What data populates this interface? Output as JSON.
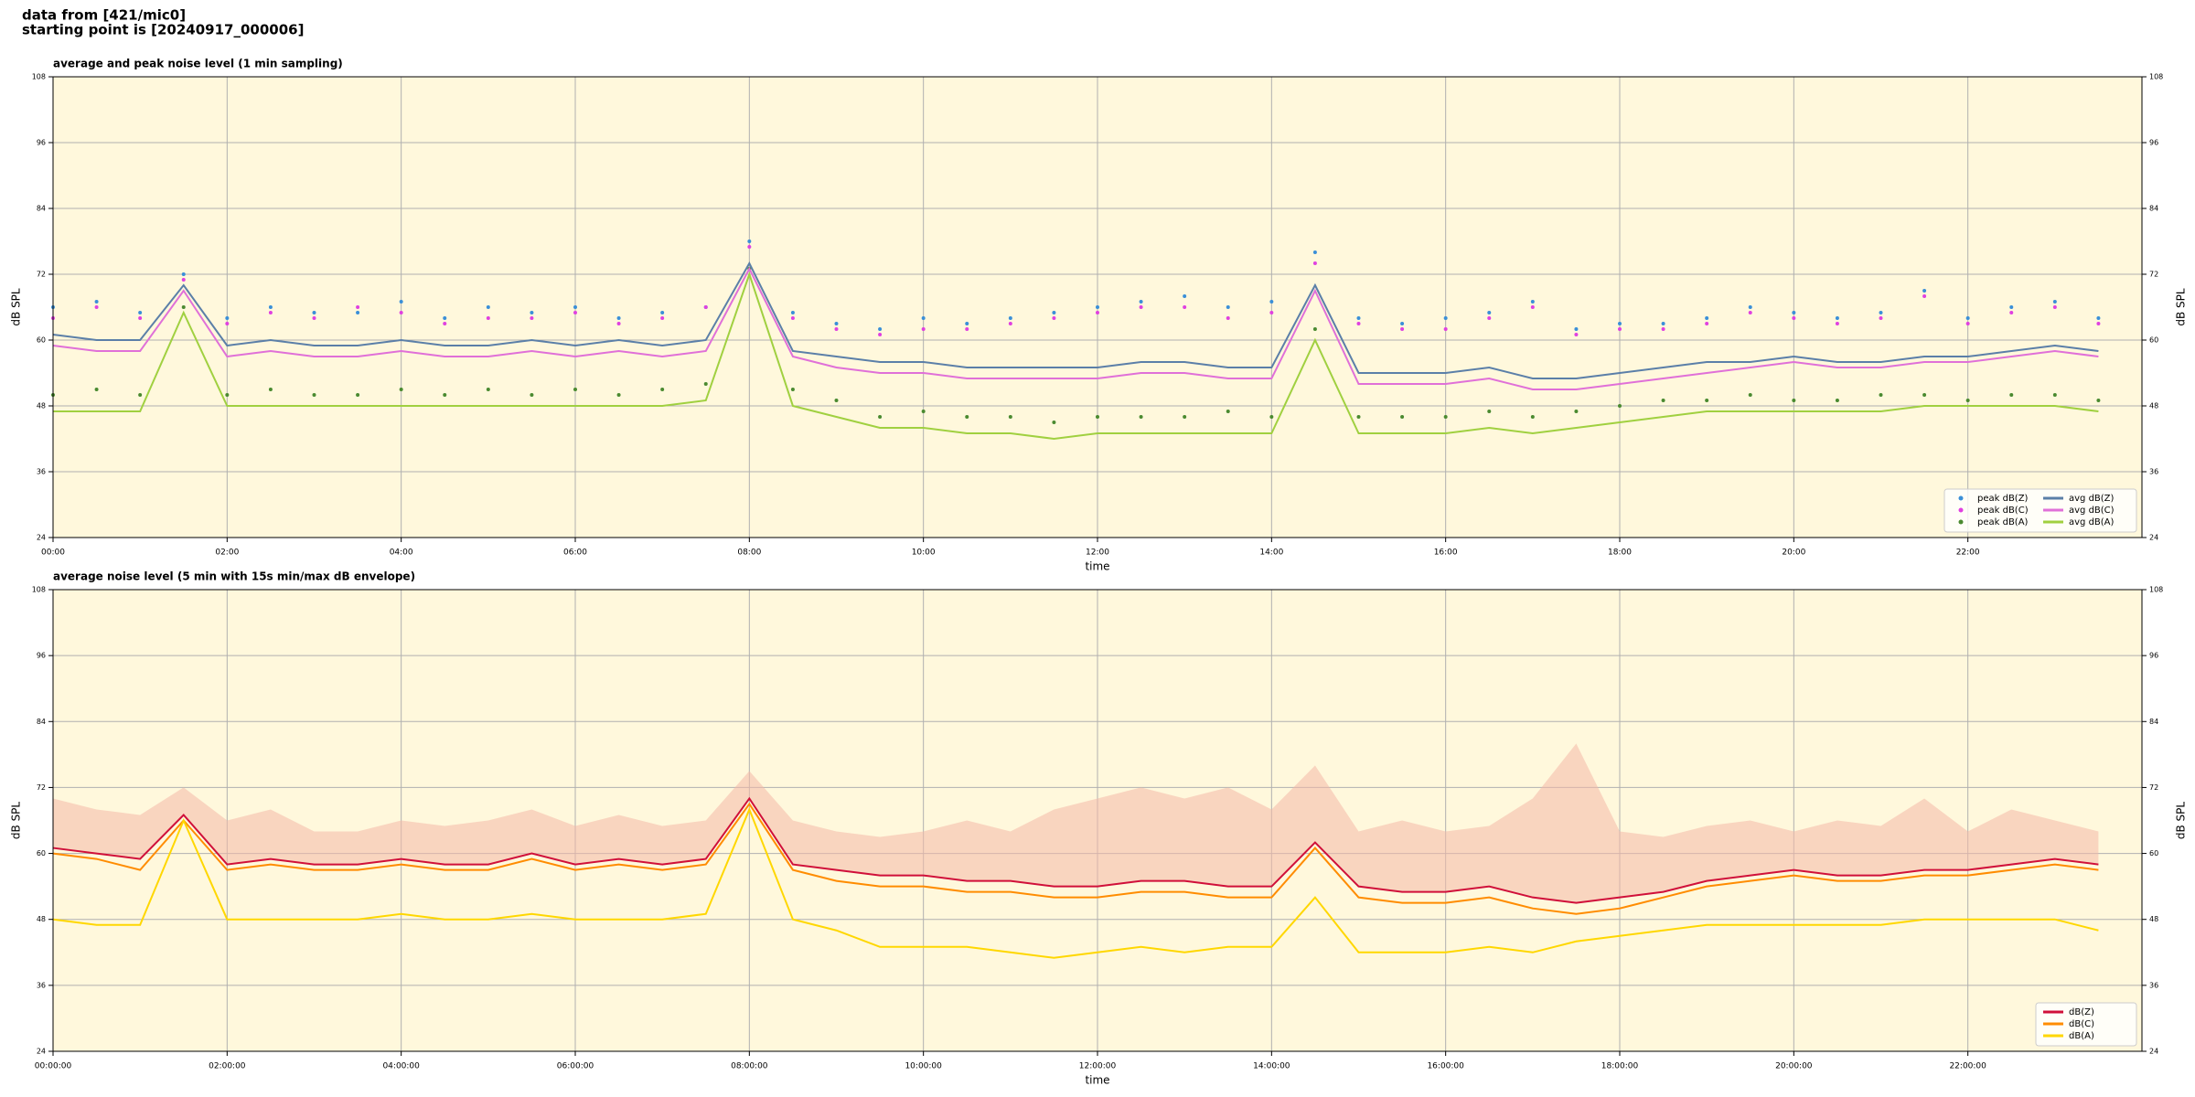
{
  "header": {
    "line1": "data from [421/mic0]",
    "line2": "starting point is [20240917_000006]"
  },
  "chart_data": [
    {
      "type": "line",
      "title": "average and peak noise level (1 min sampling)",
      "xlabel": "time",
      "ylabel": "dB SPL",
      "xlim": [
        0,
        24
      ],
      "ylim": [
        24,
        108
      ],
      "yticks": [
        24,
        36,
        48,
        60,
        72,
        84,
        96,
        108
      ],
      "xticks": [
        {
          "value": 0,
          "label": "00:00"
        },
        {
          "value": 2,
          "label": "02:00"
        },
        {
          "value": 4,
          "label": "04:00"
        },
        {
          "value": 6,
          "label": "06:00"
        },
        {
          "value": 8,
          "label": "08:00"
        },
        {
          "value": 10,
          "label": "10:00"
        },
        {
          "value": 12,
          "label": "12:00"
        },
        {
          "value": 14,
          "label": "14:00"
        },
        {
          "value": 16,
          "label": "16:00"
        },
        {
          "value": 18,
          "label": "18:00"
        },
        {
          "value": 20,
          "label": "20:00"
        },
        {
          "value": 22,
          "label": "22:00"
        }
      ],
      "grid": true,
      "legend": "lower right",
      "legend_columns": 2,
      "background": "#fff8dc",
      "x": [
        0,
        0.5,
        1,
        1.5,
        2,
        2.5,
        3,
        3.5,
        4,
        4.5,
        5,
        5.5,
        6,
        6.5,
        7,
        7.5,
        8,
        8.5,
        9,
        9.5,
        10,
        10.5,
        11,
        11.5,
        12,
        12.5,
        13,
        13.5,
        14,
        14.5,
        15,
        15.5,
        16,
        16.5,
        17,
        17.5,
        18,
        18.5,
        19,
        19.5,
        20,
        20.5,
        21,
        21.5,
        22,
        22.5,
        23,
        23.5
      ],
      "series": [
        {
          "name": "peak dB(Z)",
          "color": "#3a8fd8",
          "style": "dots",
          "values": [
            66,
            67,
            65,
            72,
            64,
            66,
            65,
            65,
            67,
            64,
            66,
            65,
            66,
            64,
            65,
            66,
            78,
            65,
            63,
            62,
            64,
            63,
            64,
            65,
            66,
            67,
            68,
            66,
            67,
            76,
            64,
            63,
            64,
            65,
            67,
            62,
            63,
            63,
            64,
            66,
            65,
            64,
            65,
            69,
            64,
            66,
            67,
            64
          ]
        },
        {
          "name": "peak dB(C)",
          "color": "#e040e0",
          "style": "dots",
          "values": [
            64,
            66,
            64,
            71,
            63,
            65,
            64,
            66,
            65,
            63,
            64,
            64,
            65,
            63,
            64,
            66,
            77,
            64,
            62,
            61,
            62,
            62,
            63,
            64,
            65,
            66,
            66,
            64,
            65,
            74,
            63,
            62,
            62,
            64,
            66,
            61,
            62,
            62,
            63,
            65,
            64,
            63,
            64,
            68,
            63,
            65,
            66,
            63
          ]
        },
        {
          "name": "peak dB(A)",
          "color": "#4a8a30",
          "style": "dots",
          "values": [
            50,
            51,
            50,
            66,
            50,
            51,
            50,
            50,
            51,
            50,
            51,
            50,
            51,
            50,
            51,
            52,
            73,
            51,
            49,
            46,
            47,
            46,
            46,
            45,
            46,
            46,
            46,
            47,
            46,
            62,
            46,
            46,
            46,
            47,
            46,
            47,
            48,
            49,
            49,
            50,
            49,
            49,
            50,
            50,
            49,
            50,
            50,
            49
          ]
        },
        {
          "name": "avg dB(Z)",
          "color": "#5b7fa8",
          "style": "line",
          "values": [
            61,
            60,
            60,
            70,
            59,
            60,
            59,
            59,
            60,
            59,
            59,
            60,
            59,
            60,
            59,
            60,
            74,
            58,
            57,
            56,
            56,
            55,
            55,
            55,
            55,
            56,
            56,
            55,
            55,
            70,
            54,
            54,
            54,
            55,
            53,
            53,
            54,
            55,
            56,
            56,
            57,
            56,
            56,
            57,
            57,
            58,
            59,
            58
          ]
        },
        {
          "name": "avg dB(C)",
          "color": "#e070d8",
          "style": "line",
          "values": [
            59,
            58,
            58,
            69,
            57,
            58,
            57,
            57,
            58,
            57,
            57,
            58,
            57,
            58,
            57,
            58,
            73,
            57,
            55,
            54,
            54,
            53,
            53,
            53,
            53,
            54,
            54,
            53,
            53,
            69,
            52,
            52,
            52,
            53,
            51,
            51,
            52,
            53,
            54,
            55,
            56,
            55,
            55,
            56,
            56,
            57,
            58,
            57
          ]
        },
        {
          "name": "avg dB(A)",
          "color": "#a0d040",
          "style": "line",
          "values": [
            47,
            47,
            47,
            65,
            48,
            48,
            48,
            48,
            48,
            48,
            48,
            48,
            48,
            48,
            48,
            49,
            72,
            48,
            46,
            44,
            44,
            43,
            43,
            42,
            43,
            43,
            43,
            43,
            43,
            60,
            43,
            43,
            43,
            44,
            43,
            44,
            45,
            46,
            47,
            47,
            47,
            47,
            47,
            48,
            48,
            48,
            48,
            47
          ]
        }
      ]
    },
    {
      "type": "line",
      "title": "average noise level (5 min with 15s min/max dB envelope)",
      "xlabel": "time",
      "ylabel": "dB SPL",
      "xlim": [
        0,
        24
      ],
      "ylim": [
        24,
        108
      ],
      "yticks": [
        24,
        36,
        48,
        60,
        72,
        84,
        96,
        108
      ],
      "xticks": [
        {
          "value": 0,
          "label": "00:00:00"
        },
        {
          "value": 2,
          "label": "02:00:00"
        },
        {
          "value": 4,
          "label": "04:00:00"
        },
        {
          "value": 6,
          "label": "06:00:00"
        },
        {
          "value": 8,
          "label": "08:00:00"
        },
        {
          "value": 10,
          "label": "10:00:00"
        },
        {
          "value": 12,
          "label": "12:00:00"
        },
        {
          "value": 14,
          "label": "14:00:00"
        },
        {
          "value": 16,
          "label": "16:00:00"
        },
        {
          "value": 18,
          "label": "18:00:00"
        },
        {
          "value": 20,
          "label": "20:00:00"
        },
        {
          "value": 22,
          "label": "22:00:00"
        }
      ],
      "grid": true,
      "legend": "lower right",
      "legend_columns": 1,
      "background": "#fff8dc",
      "x": [
        0,
        0.5,
        1,
        1.5,
        2,
        2.5,
        3,
        3.5,
        4,
        4.5,
        5,
        5.5,
        6,
        6.5,
        7,
        7.5,
        8,
        8.5,
        9,
        9.5,
        10,
        10.5,
        11,
        11.5,
        12,
        12.5,
        13,
        13.5,
        14,
        14.5,
        15,
        15.5,
        16,
        16.5,
        17,
        17.5,
        18,
        18.5,
        19,
        19.5,
        20,
        20.5,
        21,
        21.5,
        22,
        22.5,
        23,
        23.5
      ],
      "envelope": {
        "color": "#f4b8a8",
        "values": [
          70,
          68,
          67,
          72,
          66,
          68,
          64,
          64,
          66,
          65,
          66,
          68,
          65,
          67,
          65,
          66,
          75,
          66,
          64,
          63,
          64,
          66,
          64,
          68,
          70,
          72,
          70,
          72,
          68,
          76,
          64,
          66,
          64,
          65,
          70,
          80,
          64,
          63,
          65,
          66,
          64,
          66,
          65,
          70,
          64,
          68,
          66,
          64
        ]
      },
      "series": [
        {
          "name": "dB(Z)",
          "color": "#d0103a",
          "style": "line",
          "values": [
            61,
            60,
            59,
            67,
            58,
            59,
            58,
            58,
            59,
            58,
            58,
            60,
            58,
            59,
            58,
            59,
            70,
            58,
            57,
            56,
            56,
            55,
            55,
            54,
            54,
            55,
            55,
            54,
            54,
            62,
            54,
            53,
            53,
            54,
            52,
            51,
            52,
            53,
            55,
            56,
            57,
            56,
            56,
            57,
            57,
            58,
            59,
            58
          ]
        },
        {
          "name": "dB(C)",
          "color": "#ff8c00",
          "style": "line",
          "values": [
            60,
            59,
            57,
            66,
            57,
            58,
            57,
            57,
            58,
            57,
            57,
            59,
            57,
            58,
            57,
            58,
            69,
            57,
            55,
            54,
            54,
            53,
            53,
            52,
            52,
            53,
            53,
            52,
            52,
            61,
            52,
            51,
            51,
            52,
            50,
            49,
            50,
            52,
            54,
            55,
            56,
            55,
            55,
            56,
            56,
            57,
            58,
            57
          ]
        },
        {
          "name": "dB(A)",
          "color": "#ffd700",
          "style": "line",
          "values": [
            48,
            47,
            47,
            66,
            48,
            48,
            48,
            48,
            49,
            48,
            48,
            49,
            48,
            48,
            48,
            49,
            68,
            48,
            46,
            43,
            43,
            43,
            42,
            41,
            42,
            43,
            42,
            43,
            43,
            52,
            42,
            42,
            42,
            43,
            42,
            44,
            45,
            46,
            47,
            47,
            47,
            47,
            47,
            48,
            48,
            48,
            48,
            46
          ]
        }
      ]
    }
  ]
}
